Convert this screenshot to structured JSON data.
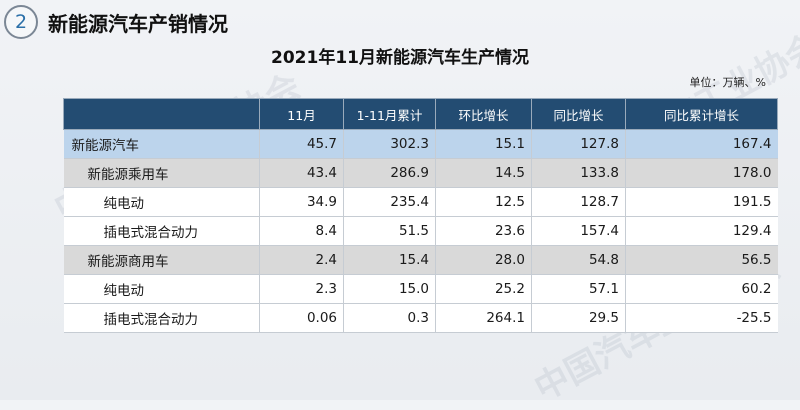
{
  "header": {
    "number": "2",
    "title": "新能源汽车产销情况"
  },
  "table_title": "2021年11月新能源汽车生产情况",
  "unit": "单位：万辆、%",
  "watermark_text": "中国汽车工业协会",
  "columns": [
    "",
    "11月",
    "1-11月累计",
    "环比增长",
    "同比增长",
    "同比累计增长"
  ],
  "rows": [
    {
      "level": 0,
      "label": "新能源汽车",
      "values": [
        "45.7",
        "302.3",
        "15.1",
        "127.8",
        "167.4"
      ]
    },
    {
      "level": 1,
      "label": "新能源乘用车",
      "values": [
        "43.4",
        "286.9",
        "14.5",
        "133.8",
        "178.0"
      ]
    },
    {
      "level": 2,
      "label": "纯电动",
      "values": [
        "34.9",
        "235.4",
        "12.5",
        "128.7",
        "191.5"
      ]
    },
    {
      "level": 2,
      "label": "插电式混合动力",
      "values": [
        "8.4",
        "51.5",
        "23.6",
        "157.4",
        "129.4"
      ]
    },
    {
      "level": 1,
      "label": "新能源商用车",
      "values": [
        "2.4",
        "15.4",
        "28.0",
        "54.8",
        "56.5"
      ]
    },
    {
      "level": 2,
      "label": "纯电动",
      "values": [
        "2.3",
        "15.0",
        "25.2",
        "57.1",
        "60.2"
      ]
    },
    {
      "level": 2,
      "label": "插电式混合动力",
      "values": [
        "0.06",
        "0.3",
        "264.1",
        "29.5",
        "-25.5"
      ]
    }
  ]
}
